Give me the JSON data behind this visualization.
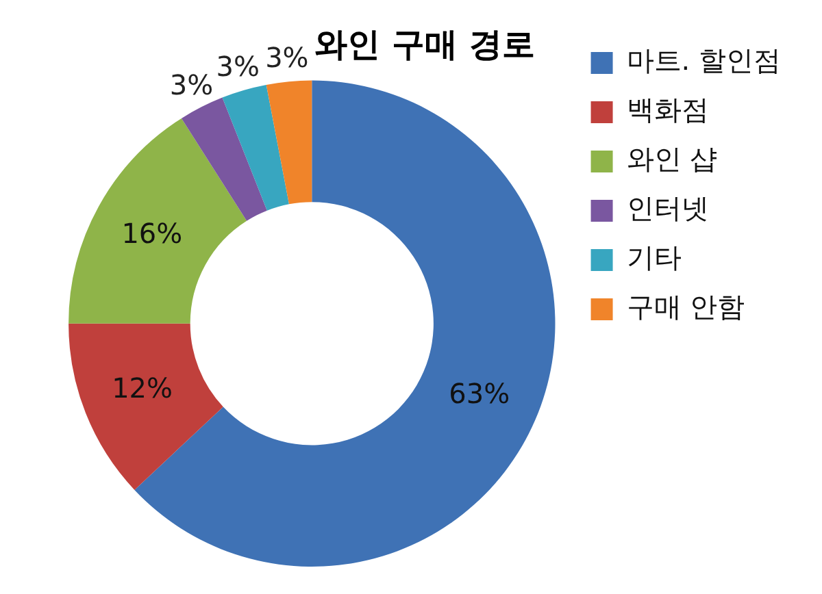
{
  "chart_data": {
    "type": "donut",
    "title": "와인 구매 경로",
    "categories": [
      "마트. 할인점",
      "백화점",
      "와인 샵",
      "인터넷",
      "기타",
      "구매 안함"
    ],
    "values": [
      63,
      12,
      16,
      3,
      3,
      3
    ],
    "value_labels": [
      "63%",
      "12%",
      "16%",
      "3%",
      "3%",
      "3%"
    ],
    "colors": [
      "#3f72b5",
      "#c0403c",
      "#8fb449",
      "#7a57a0",
      "#38a6c0",
      "#f0842a"
    ],
    "legend": "right"
  }
}
